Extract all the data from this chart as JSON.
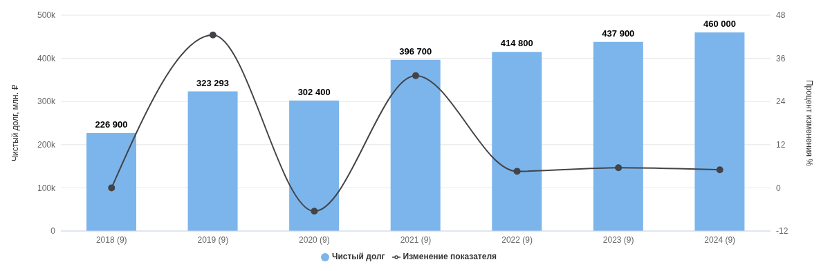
{
  "chart_data": {
    "type": "bar",
    "ylabel": "Чистый долг, млн. ₽",
    "y2label": "Процент изменения %",
    "categories": [
      "2018 (9)",
      "2019 (9)",
      "2020 (9)",
      "2021 (9)",
      "2022 (9)",
      "2023 (9)",
      "2024 (9)"
    ],
    "series": [
      {
        "name": "Чистый долг",
        "color": "#7cb5ec",
        "values": [
          226900,
          323293,
          302400,
          396700,
          414800,
          437900,
          460000
        ],
        "value_labels": [
          "226 900",
          "323 293",
          "302 400",
          "396 700",
          "414 800",
          "437 900",
          "460 000"
        ]
      },
      {
        "name": "Изменение показателя",
        "type": "line",
        "axis": "y2",
        "color": "#434348",
        "values": [
          0,
          42.5,
          -6.5,
          31.2,
          4.6,
          5.6,
          5.0
        ]
      }
    ],
    "ylim": [
      0,
      500000
    ],
    "yticks": [
      0,
      {
        "value": 100000,
        "label": "100k"
      },
      {
        "value": 200000,
        "label": "200k"
      },
      {
        "value": 300000,
        "label": "300k"
      },
      {
        "value": 400000,
        "label": "400k"
      },
      {
        "value": 500000,
        "label": "500k"
      }
    ],
    "y2lim": [
      -12,
      48
    ],
    "y2ticks": [
      -12,
      0,
      12,
      24,
      36,
      48
    ],
    "grid": "y",
    "legend": "bottom",
    "marker": "circle"
  }
}
